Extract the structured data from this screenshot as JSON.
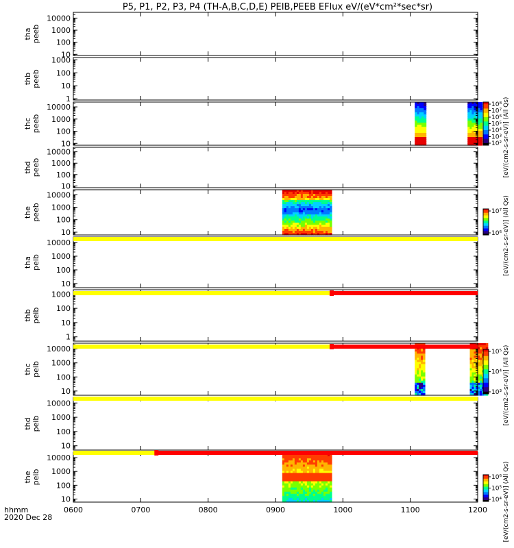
{
  "chart_data": {
    "type": "heatmap",
    "title": "P5, P1, P2, P3, P4 (TH-A,B,C,D,E) PEIB,PEEB EFlux eV/(eV*cm²*sec*sr)",
    "x_axis": {
      "label": "hhmm",
      "date": "2020 Dec 28",
      "ticks": [
        "0600",
        "0700",
        "0800",
        "0900",
        "1000",
        "1100",
        "1200"
      ],
      "range": [
        "0600",
        "1200"
      ]
    },
    "panels": [
      {
        "label": [
          "tha",
          "peeb"
        ],
        "scale": "log",
        "yticks": [
          "10",
          "100",
          "1000",
          "10000"
        ],
        "ylim": [
          8,
          30000
        ],
        "data_blocks": []
      },
      {
        "label": [
          "thb",
          "peeb"
        ],
        "scale": "log",
        "yticks": [
          "1",
          "10",
          "100",
          "1000"
        ],
        "ylim": [
          0.8,
          1500
        ],
        "data_blocks": []
      },
      {
        "label": [
          "thc",
          "peeb"
        ],
        "scale": "log",
        "yticks": [
          "10",
          "100",
          "1000",
          "10000"
        ],
        "ylim": [
          7,
          25000
        ],
        "data_blocks": [
          {
            "start": "1104",
            "end": "1114",
            "pattern": "thc_peeb"
          },
          {
            "start": "1151",
            "end": "1164",
            "pattern": "thc_peeb"
          }
        ]
      },
      {
        "label": [
          "thd",
          "peeb"
        ],
        "scale": "log",
        "yticks": [
          "10",
          "100",
          "1000",
          "10000"
        ],
        "ylim": [
          7,
          25000
        ],
        "data_blocks": []
      },
      {
        "label": [
          "the",
          "peeb"
        ],
        "scale": "log",
        "yticks": [
          "10",
          "100",
          "1000",
          "10000"
        ],
        "ylim": [
          6,
          25000
        ],
        "data_blocks": [
          {
            "start": "0906",
            "end": "0950",
            "pattern": "the_peeb"
          }
        ]
      },
      {
        "label": [
          "tha",
          "peib"
        ],
        "scale": "log",
        "yticks": [
          "10",
          "100",
          "1000",
          "10000"
        ],
        "ylim": [
          5,
          25000
        ],
        "data_blocks": []
      },
      {
        "label": [
          "thb",
          "peib"
        ],
        "scale": "log",
        "yticks": [
          "1",
          "10",
          "100",
          "1000"
        ],
        "ylim": [
          0.5,
          2000
        ],
        "data_blocks": []
      },
      {
        "label": [
          "thc",
          "peib"
        ],
        "scale": "log",
        "yticks": [
          "10",
          "100",
          "1000",
          "10000"
        ],
        "ylim": [
          5,
          25000
        ],
        "data_blocks": [
          {
            "start": "1104",
            "end": "1113",
            "pattern": "thc_peib"
          },
          {
            "start": "1153",
            "end": "1169",
            "pattern": "thc_peib"
          }
        ]
      },
      {
        "label": [
          "thd",
          "peib"
        ],
        "scale": "log",
        "yticks": [
          "10",
          "100",
          "1000",
          "10000"
        ],
        "ylim": [
          5,
          25000
        ],
        "data_blocks": []
      },
      {
        "label": [
          "the",
          "peib"
        ],
        "scale": "log",
        "yticks": [
          "10",
          "100",
          "1000",
          "10000"
        ],
        "ylim": [
          6,
          25000
        ],
        "data_blocks": [
          {
            "start": "0906",
            "end": "0950",
            "pattern": "the_peib"
          }
        ]
      }
    ],
    "mode_bars": [
      {
        "after_panel": 5,
        "segments": [
          {
            "from": "0600",
            "to": "1200",
            "color": "#ffff00"
          }
        ]
      },
      {
        "after_panel": 6,
        "segments": [
          {
            "from": "0600",
            "to": "0950",
            "color": "#ffff00"
          },
          {
            "from": "0950",
            "to": "1200",
            "color": "#ff0000"
          }
        ]
      },
      {
        "after_panel": 7,
        "segments": [
          {
            "from": "0600",
            "to": "0950",
            "color": "#ffff00"
          },
          {
            "from": "0950",
            "to": "1200",
            "color": "#ff0000"
          }
        ]
      },
      {
        "after_panel": 8,
        "segments": [
          {
            "from": "0600",
            "to": "1200",
            "color": "#ffff00"
          }
        ]
      },
      {
        "after_panel": 9,
        "segments": [
          {
            "from": "0600",
            "to": "0714",
            "color": "#ffff00"
          },
          {
            "from": "0714",
            "to": "1200",
            "color": "#ff0000"
          }
        ]
      }
    ],
    "colorbars": [
      {
        "ticks": [
          "10⁸",
          "10⁷",
          "10⁶",
          "10⁵",
          "10⁴",
          "10³",
          "10²"
        ],
        "label": "[eV/(cm2-s-sr-eV)] (All Qs)",
        "spans_panels": [
          2
        ]
      },
      {
        "ticks": [
          "10⁷",
          "10⁶"
        ],
        "label": "[eV/(cm2-s-sr-eV)] (All Qs)",
        "spans_panels": [
          4
        ]
      },
      {
        "ticks": [
          "10⁵",
          "10⁴",
          "10³"
        ],
        "label": "[eV/(cm2-s-sr-eV)] (All Qs)",
        "spans_panels": [
          7
        ]
      },
      {
        "ticks": [
          "10⁶",
          "10⁵",
          "10⁴"
        ],
        "label": "[eV/(cm2-s-sr-eV)] (All Qs)",
        "spans_panels": [
          9
        ]
      }
    ],
    "colormap": [
      "#000000",
      "#2a0080",
      "#0000ff",
      "#0078ff",
      "#00d2ff",
      "#00ff8c",
      "#78ff00",
      "#ffff00",
      "#ffb400",
      "#ff3c00",
      "#e60000"
    ]
  }
}
